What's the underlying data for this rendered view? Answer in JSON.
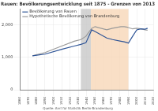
{
  "chart_data": {
    "type": "line",
    "title": "Rauen: Bevölkerungsentwicklung seit 1875 - Grenzen von 2013",
    "source": "Quelle: Amt für Statistik Berlin-Brandenburg",
    "x": [
      1875,
      1890,
      1910,
      1925,
      1933,
      1939,
      1946,
      1950,
      1964,
      1971,
      1981,
      1985,
      1989,
      1990,
      1995,
      2000,
      2005,
      2010,
      2013
    ],
    "series": [
      {
        "name": "Bevölkerung von Rauen",
        "color": "#2f5597",
        "line_style": "solid",
        "values": [
          1050,
          1100,
          1250,
          1350,
          1400,
          1450,
          1850,
          1800,
          1600,
          1550,
          1500,
          1480,
          1450,
          1440,
          1650,
          1850,
          1880,
          1870,
          1900
        ]
      },
      {
        "name": "Hypothetische Bevölkerung von Brandenburg",
        "color": "#9a9a9a",
        "line_style": "solid",
        "values": [
          1050,
          1150,
          1350,
          1500,
          1550,
          1650,
          1900,
          1950,
          1850,
          1900,
          1950,
          1950,
          1930,
          1920,
          1880,
          1900,
          1880,
          1850,
          1840
        ]
      }
    ],
    "periods": [
      {
        "start": 1933,
        "end": 1945,
        "color": "#c8c8c8"
      },
      {
        "start": 1945,
        "end": 1990,
        "color": "#f8d7b8"
      }
    ],
    "xlim": [
      1860,
      2020
    ],
    "xticks": [
      1860,
      1870,
      1880,
      1890,
      1900,
      1910,
      1920,
      1930,
      1940,
      1950,
      1960,
      1970,
      1980,
      1990,
      2000,
      2010,
      2020
    ],
    "ylim": [
      0,
      2500
    ],
    "yticks": [
      0,
      {
        "value": 1000,
        "label": "1,000"
      },
      {
        "value": 2000,
        "label": "2,000"
      }
    ],
    "grid": true,
    "legend": "upper left"
  }
}
